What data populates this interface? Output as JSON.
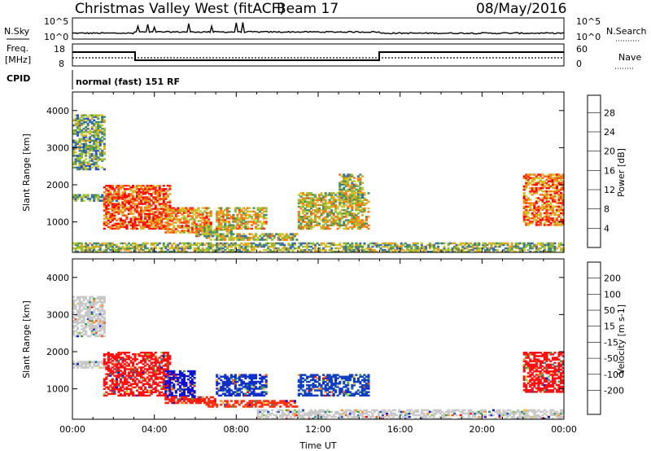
{
  "header": {
    "station": "Christmas Valley West (fitACF)",
    "beam": "Beam 17",
    "date": "08/May/2016"
  },
  "sky_panel": {
    "left_label": "N.Sky",
    "right_label": "N.Search",
    "left_ticks": [
      "10^5",
      "10^0"
    ],
    "right_ticks": [
      "10^5",
      "10^0"
    ]
  },
  "freq_panel": {
    "left_label_line1": "Freq.",
    "left_label_line2": "[MHz]",
    "right_label": "Nave",
    "left_ticks": [
      "18",
      "8"
    ],
    "right_ticks": [
      "60",
      "0"
    ]
  },
  "cpid": {
    "label": "CPID",
    "text": "normal (fast) 151 RF"
  },
  "chart_data": [
    {
      "type": "heatmap",
      "title": "",
      "ylabel": "Slant Range [km]",
      "xlabel": "",
      "x_range_hours": [
        0,
        24
      ],
      "y_range_km": [
        180,
        4500
      ],
      "ytick_labels": [
        "1000",
        "2000",
        "3000",
        "4000"
      ],
      "ytick_values": [
        1000,
        2000,
        3000,
        4000
      ],
      "colorbar": {
        "label": "Power [dB]",
        "tick_labels": [
          "4",
          "8",
          "12",
          "16",
          "20",
          "24",
          "28"
        ],
        "colors": [
          "#1030e0",
          "#2050c8",
          "#3a6ea8",
          "#4c8f5a",
          "#8ab83a",
          "#c8c82c",
          "#e8a020",
          "#ff7010",
          "#ff3010",
          "#ff0000"
        ],
        "range": [
          0,
          30
        ]
      },
      "regions": [
        {
          "t0": 0.0,
          "t1": 2.2,
          "r0": 1550,
          "r1": 1750,
          "level": 0.35
        },
        {
          "t0": 0.0,
          "t1": 1.6,
          "r0": 2400,
          "r1": 3900,
          "level": 0.4
        },
        {
          "t0": 1.5,
          "t1": 4.8,
          "r0": 800,
          "r1": 2000,
          "level": 0.8
        },
        {
          "t0": 4.5,
          "t1": 6.8,
          "r0": 700,
          "r1": 1400,
          "level": 0.7
        },
        {
          "t0": 6.0,
          "t1": 7.8,
          "r0": 600,
          "r1": 900,
          "level": 0.5
        },
        {
          "t0": 7.0,
          "t1": 9.5,
          "r0": 800,
          "r1": 1400,
          "level": 0.6
        },
        {
          "t0": 6.5,
          "t1": 11.0,
          "r0": 500,
          "r1": 700,
          "level": 0.5
        },
        {
          "t0": 11.0,
          "t1": 14.5,
          "r0": 800,
          "r1": 1800,
          "level": 0.55
        },
        {
          "t0": 13.0,
          "t1": 14.2,
          "r0": 1500,
          "r1": 2300,
          "level": 0.5
        },
        {
          "t0": 22.0,
          "t1": 24.0,
          "r0": 900,
          "r1": 2300,
          "level": 0.75
        },
        {
          "t0": 0.0,
          "t1": 24.0,
          "r0": 180,
          "r1": 450,
          "level": 0.45
        }
      ]
    },
    {
      "type": "heatmap",
      "title": "",
      "ylabel": "Slant Range [km]",
      "xlabel": "Time UT",
      "x_range_hours": [
        0,
        24
      ],
      "y_range_km": [
        180,
        4500
      ],
      "xtick_labels": [
        "00:00",
        "04:00",
        "08:00",
        "12:00",
        "16:00",
        "20:00",
        "00:00"
      ],
      "xtick_values": [
        0,
        4,
        8,
        12,
        16,
        20,
        24
      ],
      "ytick_labels": [
        "1000",
        "2000",
        "3000",
        "4000"
      ],
      "ytick_values": [
        1000,
        2000,
        3000,
        4000
      ],
      "colorbar": {
        "label": "Velocity [m s-1]",
        "tick_labels": [
          "200",
          "100",
          "50",
          "15",
          "-15",
          "-50",
          "-100",
          "-200"
        ],
        "colors": [
          "#1010d0",
          "#2050c0",
          "#2c8a8a",
          "#40a040",
          "#78d040",
          "#c8c8c8",
          "#f0c030",
          "#ff9020",
          "#ff5010",
          "#ff0000"
        ],
        "range": [
          -250,
          250
        ]
      },
      "regions": [
        {
          "t0": 0.0,
          "t1": 2.2,
          "r0": 1550,
          "r1": 1750,
          "color": "#c8c8c8"
        },
        {
          "t0": 0.0,
          "t1": 1.6,
          "r0": 2400,
          "r1": 3500,
          "color": "#c8c8c8"
        },
        {
          "t0": 1.5,
          "t1": 4.8,
          "r0": 800,
          "r1": 2000,
          "color": "#ff1010"
        },
        {
          "t0": 4.5,
          "t1": 6.0,
          "r0": 700,
          "r1": 1500,
          "color": "#1010d0"
        },
        {
          "t0": 4.5,
          "t1": 7.0,
          "r0": 600,
          "r1": 800,
          "color": "#ff2010"
        },
        {
          "t0": 7.0,
          "t1": 9.5,
          "r0": 800,
          "r1": 1400,
          "color": "#1030c8"
        },
        {
          "t0": 6.5,
          "t1": 11.0,
          "r0": 500,
          "r1": 700,
          "color": "#ff3010"
        },
        {
          "t0": 11.0,
          "t1": 14.5,
          "r0": 800,
          "r1": 1400,
          "color": "#1040c0"
        },
        {
          "t0": 22.0,
          "t1": 24.0,
          "r0": 900,
          "r1": 2000,
          "color": "#ff1010"
        },
        {
          "t0": 9.0,
          "t1": 24.0,
          "r0": 180,
          "r1": 450,
          "color": "#c8c8c8"
        }
      ]
    }
  ]
}
